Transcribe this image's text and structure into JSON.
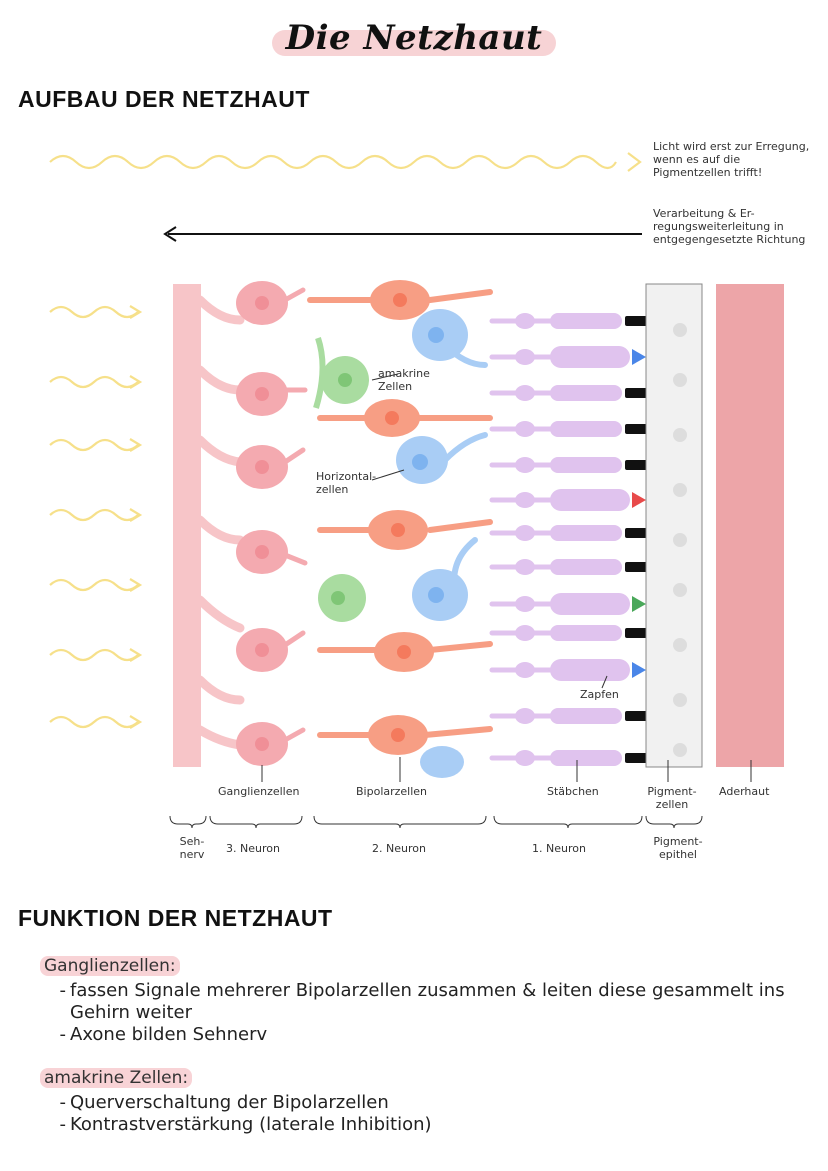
{
  "title": "Die Netzhaut",
  "section1": {
    "heading": "AUFBAU DER NETZHAUT"
  },
  "notes": {
    "light": "Licht wird erst zur Erregung, wenn es auf die Pigmentzellen trifft!",
    "processing": "Verarbeitung & Er-regungsweiterleitung in entgegengesetzte Richtung"
  },
  "diagram": {
    "labels": {
      "amakrine": "amakrine Zellen",
      "horizontal": "Horizontal-zellen",
      "zapfen": "Zapfen",
      "ganglien": "Ganglienzellen",
      "bipolar": "Bipolarzellen",
      "staebchen": "Stäbchen",
      "pigmentzellen": "Pigment-zellen",
      "aderhaut": "Aderhaut"
    },
    "groups": {
      "sehnerv": "Seh-nerv",
      "neuron3": "3. Neuron",
      "neuron2": "2. Neuron",
      "neuron1": "1. Neuron",
      "pigmentepithel": "Pigment-epithel"
    },
    "colors": {
      "nerve": "#f7c5c8",
      "ganglion": "#f4aab0",
      "bipolar": "#f79e84",
      "amacrine": "#a9dca0",
      "horizontal": "#a9cdf5",
      "rod": "#e0c3ee",
      "pigment": "#f1f1f1",
      "choroid": "#eda5a8",
      "light": "#f6e08a"
    }
  },
  "section2": {
    "heading": "FUNKTION DER NETZHAUT",
    "blocks": [
      {
        "label": "Ganglienzellen:",
        "items": [
          "fassen Signale mehrerer Bipolarzellen zusammen & leiten diese gesammelt ins Gehirn weiter",
          "Axone bilden Sehnerv"
        ]
      },
      {
        "label": "amakrine Zellen:",
        "items": [
          "Querverschaltung der Bipolarzellen",
          "Kontrastverstärkung (laterale Inhibition)"
        ]
      }
    ]
  }
}
